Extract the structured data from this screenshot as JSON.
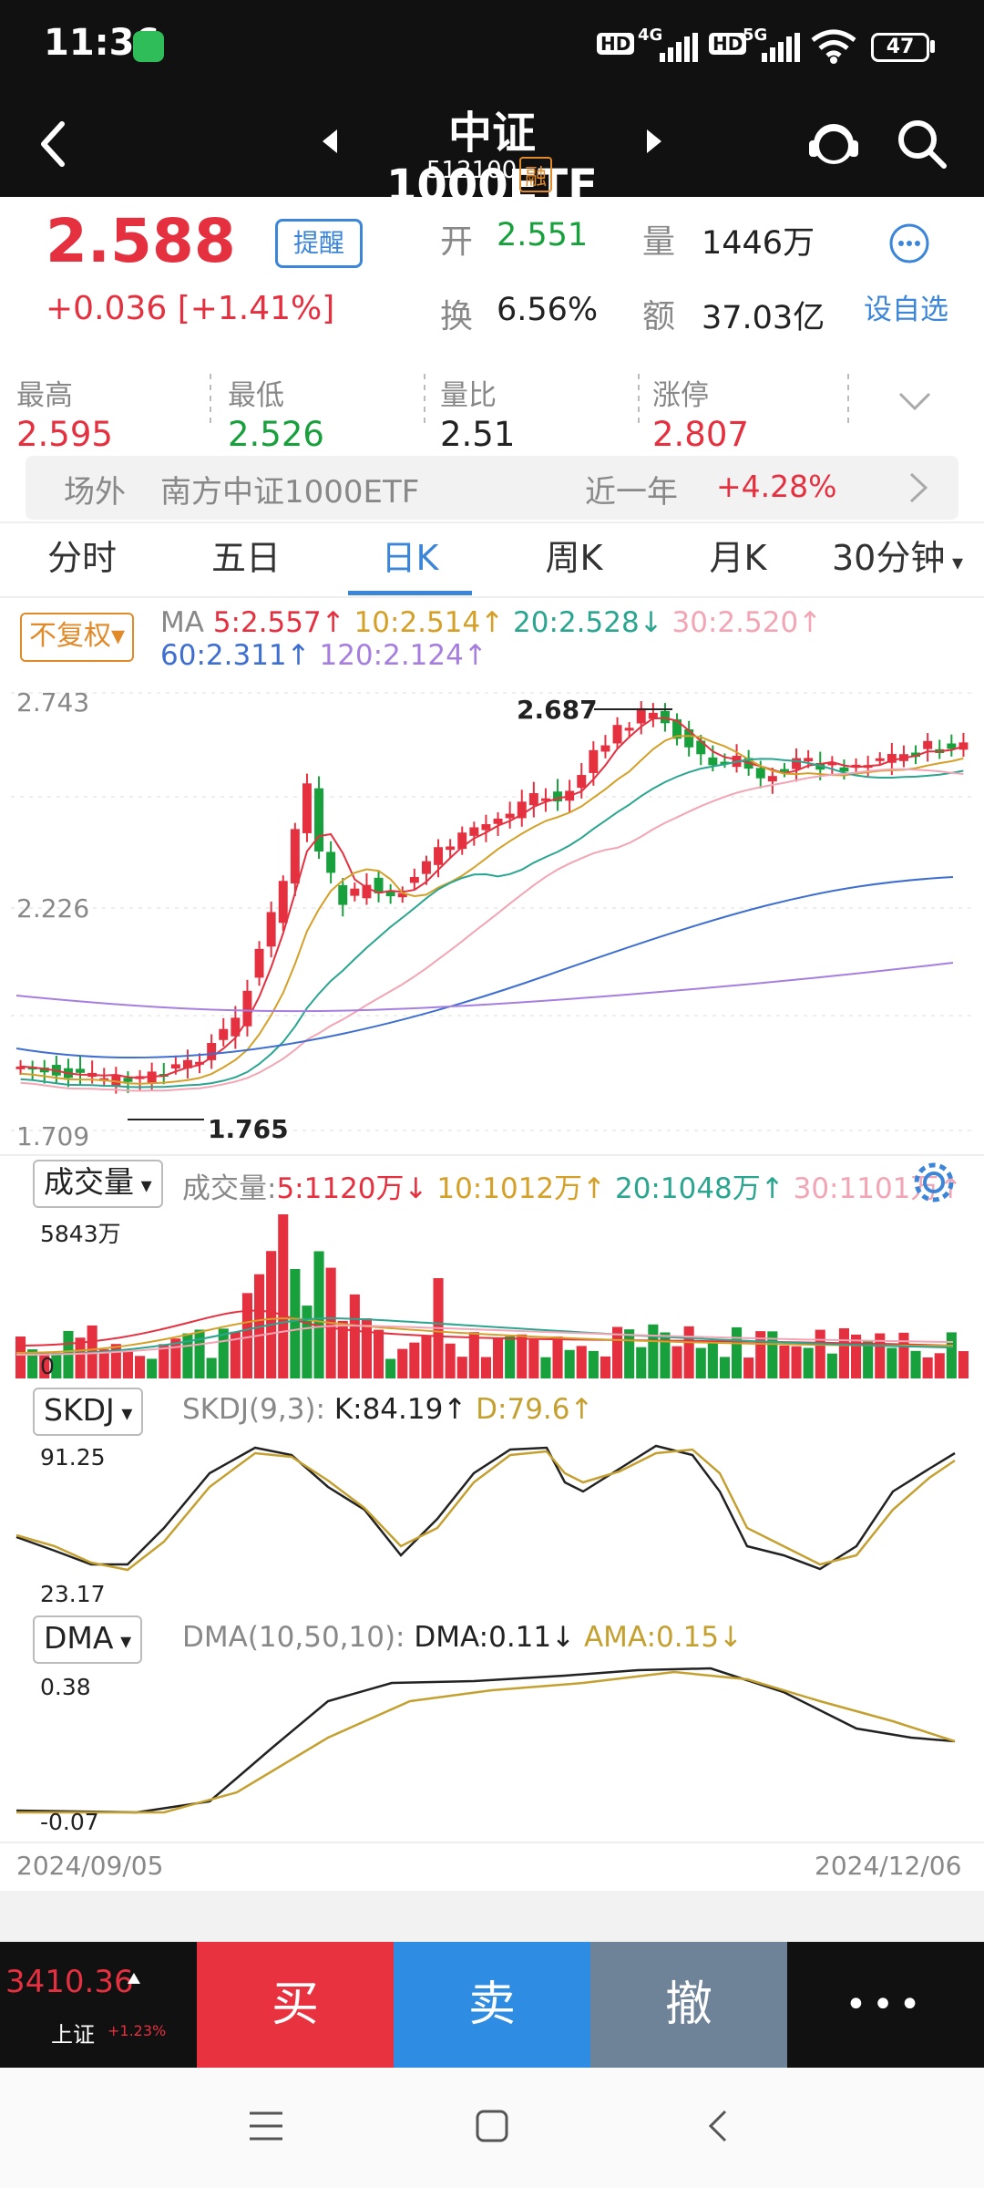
{
  "status": {
    "time": "11:36",
    "battery": "47",
    "net1": "4G",
    "net2": "5G",
    "hd": "HD"
  },
  "header": {
    "title": "中证1000ETF",
    "code": "512100",
    "margin_badge": "融"
  },
  "quote": {
    "price": "2.588",
    "change": "+0.036",
    "change_pct": "[+1.41%]",
    "remind_label": "提醒",
    "open_label": "开",
    "open": "2.551",
    "volume_label": "量",
    "volume": "1446万",
    "turnover_label": "换",
    "turnover": "6.56%",
    "amount_label": "额",
    "amount": "37.03亿",
    "watchlist_label": "设自选"
  },
  "stats": [
    {
      "label": "最高",
      "value": "2.595",
      "color": "#e5303f"
    },
    {
      "label": "最低",
      "value": "2.526",
      "color": "#17a03c"
    },
    {
      "label": "量比",
      "value": "2.51",
      "color": "#222222"
    },
    {
      "label": "涨停",
      "value": "2.807",
      "color": "#e5303f"
    }
  ],
  "offexchange": {
    "label": "场外",
    "name": "南方中证1000ETF",
    "period": "近一年",
    "return": "+4.28%"
  },
  "tabs": [
    "分时",
    "五日",
    "日K",
    "周K",
    "月K",
    "30分钟"
  ],
  "active_tab": "日K",
  "kline": {
    "adjust_label": "不复权",
    "ma_title": "MA",
    "ma": [
      {
        "text": "5:2.557↑",
        "color": "#e5303f"
      },
      {
        "text": "10:2.514↑",
        "color": "#d4a028"
      },
      {
        "text": "20:2.528↓",
        "color": "#2aa58f"
      },
      {
        "text": "30:2.520↑",
        "color": "#f2a5b4"
      },
      {
        "text": "60:2.311↑",
        "color": "#3e6fd0"
      },
      {
        "text": "120:2.124↑",
        "color": "#a67ee0"
      }
    ],
    "y_top": "2.743",
    "y_mid": "2.226",
    "y_bot": "1.709",
    "high_mark": "2.687",
    "low_mark": "1.765"
  },
  "volume": {
    "select_label": "成交量",
    "title": "成交量:",
    "ma": [
      {
        "text": "5:1120万↓",
        "color": "#e5303f"
      },
      {
        "text": "10:1012万↑",
        "color": "#d4a028"
      },
      {
        "text": "20:1048万↑",
        "color": "#2aa58f"
      },
      {
        "text": "30:1101万↑",
        "color": "#f2a5b4"
      }
    ],
    "max_label": "5843万",
    "zero_label": "0"
  },
  "skdj": {
    "select_label": "SKDJ",
    "params": "SKDJ(9,3):",
    "k": "K:84.19↑",
    "d": "D:79.6↑",
    "y_top": "91.25",
    "y_bot": "23.17"
  },
  "dma": {
    "select_label": "DMA",
    "params": "DMA(10,50,10):",
    "dma": "DMA:0.11↓",
    "ama": "AMA:0.15↓",
    "y_top": "0.38",
    "y_bot": "-0.07"
  },
  "x_axis": {
    "start": "2024/09/05",
    "end": "2024/12/06"
  },
  "bottom": {
    "index_value": "3410.36",
    "index_name": "上证",
    "index_change": "+1.23%",
    "buy": "买",
    "sell": "卖",
    "cancel": "撤",
    "more": "•••"
  },
  "colors": {
    "up": "#e5303f",
    "down": "#17a03c",
    "accent": "#3c86d9",
    "buy": "#e8323f",
    "sell": "#2f8ce3",
    "cancel": "#6e8298"
  }
}
